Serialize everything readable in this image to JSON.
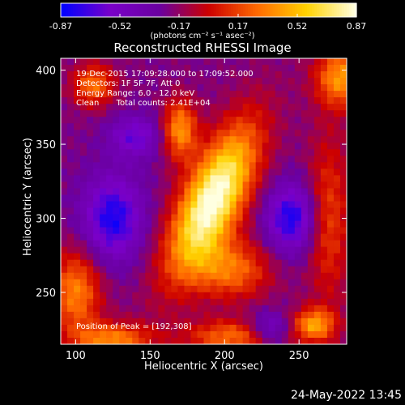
{
  "chart_data": {
    "type": "heatmap",
    "title": "Reconstructed RHESSI Image",
    "xlabel": "Heliocentric X (arcsec)",
    "ylabel": "Heliocentric Y (arcsec)",
    "xlim": [
      90,
      282
    ],
    "ylim": [
      215,
      408
    ],
    "xticks": [
      100,
      150,
      200,
      250
    ],
    "yticks": [
      250,
      300,
      350,
      400
    ],
    "colorbar": {
      "min": -0.87,
      "max": 0.87,
      "ticks": [
        "-0.87",
        "-0.52",
        "-0.17",
        "0.17",
        "0.52",
        "0.87"
      ],
      "units_text": "(photons cm⁻² s⁻¹ asec⁻²)",
      "colormap": [
        "#0000ff",
        "#7a00c8",
        "#6a00a0",
        "#cc0000",
        "#ff6a00",
        "#ffd200",
        "#ffffe0"
      ]
    },
    "annotations": {
      "time_range": "19-Dec-2015 17:09:28.000 to 17:09:52.000",
      "detectors": "Detectors: 1F 5F 7F, Att 0",
      "energy_range": "Energy Range: 6.0 - 12.0 keV",
      "method": "Clean",
      "total_counts": "Total counts: 2.41E+04",
      "peak_position": "Position of Peak = [192,308]"
    },
    "peak": [
      192,
      308
    ],
    "sources": [
      {
        "x": 192,
        "y": 312,
        "sx": 14,
        "sy": 38,
        "rot": -25,
        "amp": 1.0
      },
      {
        "x": 170,
        "y": 360,
        "sx": 8,
        "sy": 14,
        "rot": 0,
        "amp": 0.55
      },
      {
        "x": 205,
        "y": 265,
        "sx": 18,
        "sy": 14,
        "rot": 0,
        "amp": 0.45
      },
      {
        "x": 112,
        "y": 390,
        "sx": 10,
        "sy": 10,
        "rot": 0,
        "amp": 0.45
      },
      {
        "x": 278,
        "y": 395,
        "sx": 12,
        "sy": 14,
        "rot": 0,
        "amp": 0.55
      },
      {
        "x": 270,
        "y": 300,
        "sx": 10,
        "sy": 40,
        "rot": 0,
        "amp": 0.35
      },
      {
        "x": 100,
        "y": 250,
        "sx": 12,
        "sy": 20,
        "rot": 0,
        "amp": 0.5
      },
      {
        "x": 260,
        "y": 228,
        "sx": 10,
        "sy": 8,
        "rot": 0,
        "amp": 0.55
      },
      {
        "x": 125,
        "y": 218,
        "sx": 18,
        "sy": 8,
        "rot": 0,
        "amp": 0.5
      },
      {
        "x": 205,
        "y": 220,
        "sx": 22,
        "sy": 8,
        "rot": 0,
        "amp": 0.45
      }
    ],
    "sinks": [
      {
        "x": 125,
        "y": 300,
        "sx": 14,
        "sy": 20,
        "amp": 0.5
      },
      {
        "x": 245,
        "y": 300,
        "sx": 12,
        "sy": 16,
        "amp": 0.5
      },
      {
        "x": 140,
        "y": 355,
        "sx": 12,
        "sy": 10,
        "amp": 0.35
      },
      {
        "x": 230,
        "y": 225,
        "sx": 10,
        "sy": 8,
        "amp": 0.35
      }
    ]
  },
  "footer": {
    "date": "24-May-2022 13:45"
  }
}
